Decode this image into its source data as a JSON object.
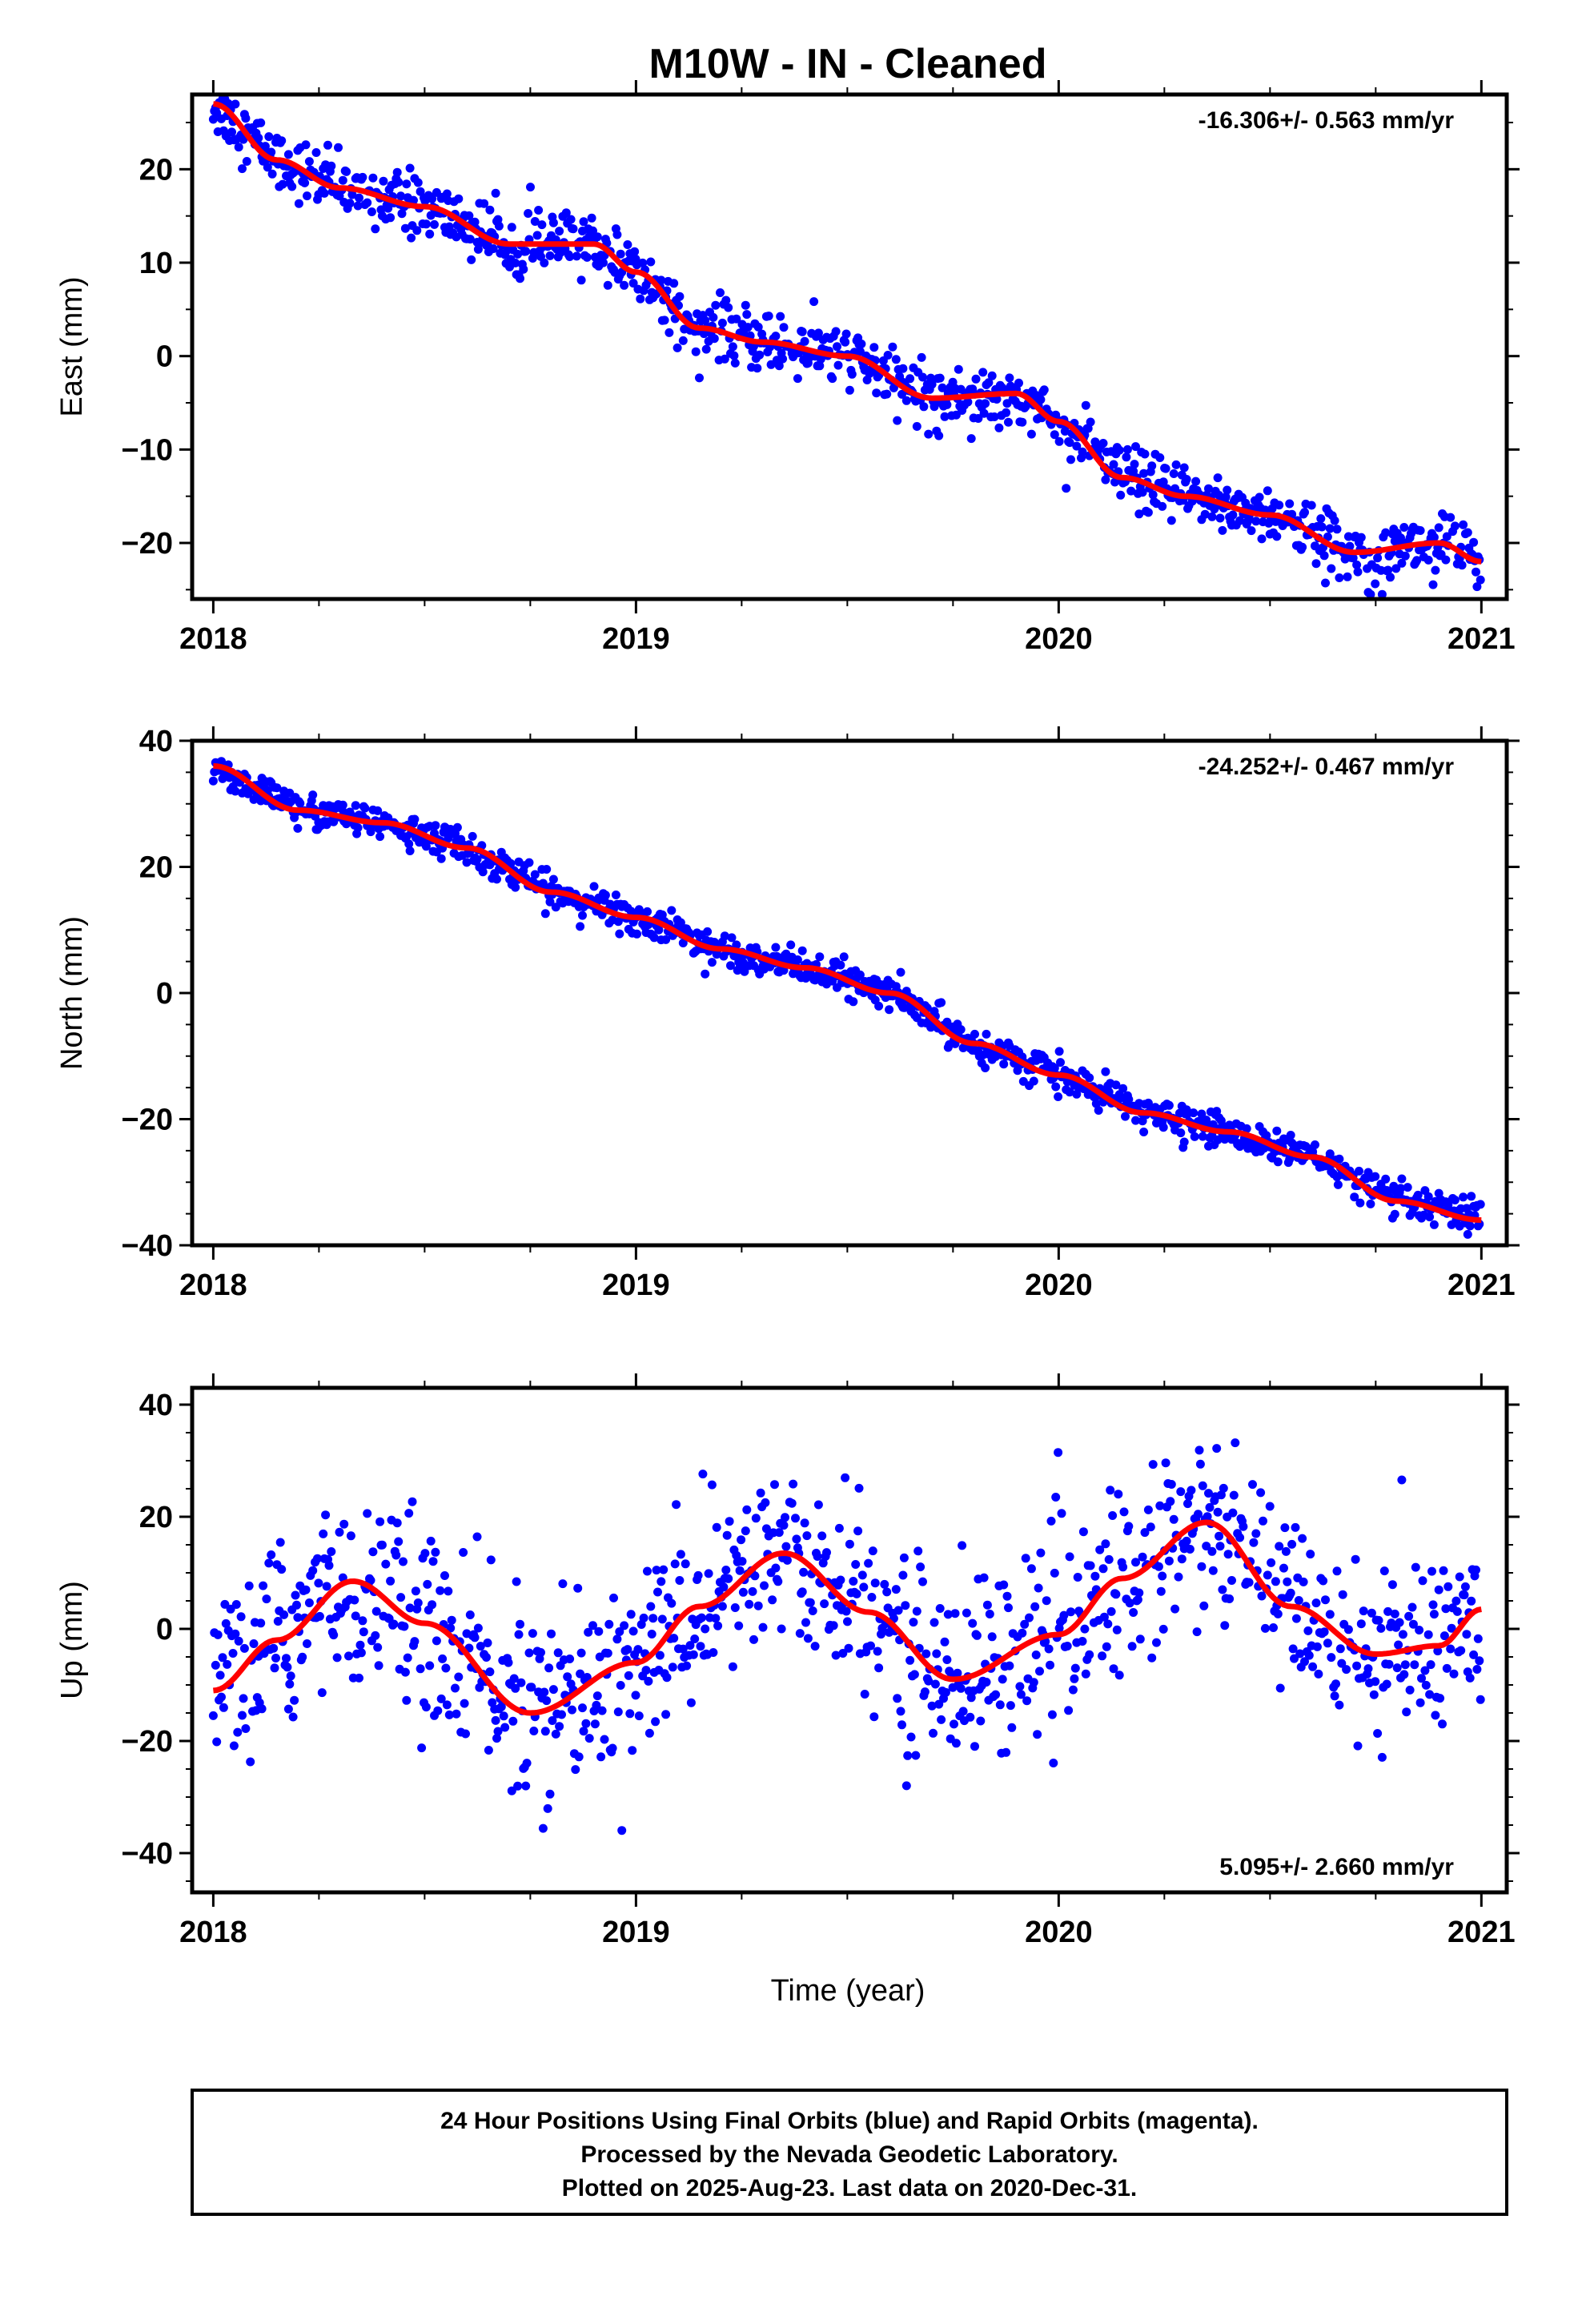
{
  "title": "M10W  - IN - Cleaned",
  "xlabel": "Time (year)",
  "footer": {
    "line1": "24 Hour Positions Using Final Orbits (blue) and Rapid Orbits (magenta).",
    "line2": "Processed by the Nevada Geodetic Laboratory.",
    "line3": "Plotted on 2025-Aug-23. Last data on 2020-Dec-31."
  },
  "colors": {
    "points": "#0000ff",
    "model": "#ff0000",
    "axis": "#000000"
  },
  "chart_data": [
    {
      "type": "scatter",
      "component": "east",
      "ylabel": "East (mm)",
      "rate_text": "-16.306+/- 0.563 mm/yr",
      "rate_position": "top-right",
      "xlim": [
        2017.95,
        2021.06
      ],
      "ylim": [
        -26,
        28
      ],
      "yticks": [
        -20,
        -10,
        0,
        10,
        20
      ],
      "xticks": [
        2018,
        2019,
        2020,
        2021
      ],
      "trend": {
        "x": [
          2018.0,
          2018.15,
          2018.3,
          2018.5,
          2018.7,
          2018.9,
          2019.0,
          2019.15,
          2019.3,
          2019.5,
          2019.7,
          2019.9,
          2020.0,
          2020.15,
          2020.3,
          2020.5,
          2020.7,
          2020.9,
          2021.0
        ],
        "y": [
          27,
          21,
          18,
          16,
          12,
          12,
          9,
          3,
          1.5,
          0,
          -4.5,
          -4,
          -7,
          -13,
          -15,
          -17,
          -21,
          -20,
          -22
        ]
      },
      "scatter_sd": 1.6
    },
    {
      "type": "scatter",
      "component": "north",
      "ylabel": "North (mm)",
      "rate_text": "-24.252+/- 0.467 mm/yr",
      "rate_position": "top-right",
      "xlim": [
        2017.95,
        2021.06
      ],
      "ylim": [
        -40,
        40
      ],
      "yticks": [
        -40,
        -20,
        0,
        20,
        40
      ],
      "xticks": [
        2018,
        2019,
        2020,
        2021
      ],
      "trend": {
        "x": [
          2018.0,
          2018.2,
          2018.4,
          2018.6,
          2018.8,
          2019.0,
          2019.2,
          2019.4,
          2019.6,
          2019.8,
          2020.0,
          2020.2,
          2020.4,
          2020.6,
          2020.8,
          2021.0
        ],
        "y": [
          36,
          29,
          27,
          23,
          16,
          12,
          7,
          4,
          0,
          -8,
          -13,
          -19,
          -22,
          -26,
          -33,
          -36
        ]
      },
      "scatter_sd": 1.3
    },
    {
      "type": "scatter",
      "component": "up",
      "ylabel": "Up (mm)",
      "rate_text": "5.095+/- 2.660 mm/yr",
      "rate_position": "bottom-right",
      "xlim": [
        2017.95,
        2021.06
      ],
      "ylim": [
        -47,
        43
      ],
      "yticks": [
        -40,
        -20,
        0,
        20,
        40
      ],
      "xticks": [
        2018,
        2019,
        2020,
        2021
      ],
      "trend": {
        "x": [
          2018.0,
          2018.15,
          2018.33,
          2018.5,
          2018.75,
          2019.0,
          2019.15,
          2019.35,
          2019.55,
          2019.75,
          2020.0,
          2020.15,
          2020.35,
          2020.55,
          2020.75,
          2020.9,
          2021.0
        ],
        "y": [
          -11,
          -2,
          8.5,
          1,
          -15,
          -6,
          4,
          13.5,
          3,
          -9,
          -1,
          9,
          19,
          4,
          -4.5,
          -3,
          3.5
        ]
      },
      "scatter_sd": 8.5
    }
  ]
}
